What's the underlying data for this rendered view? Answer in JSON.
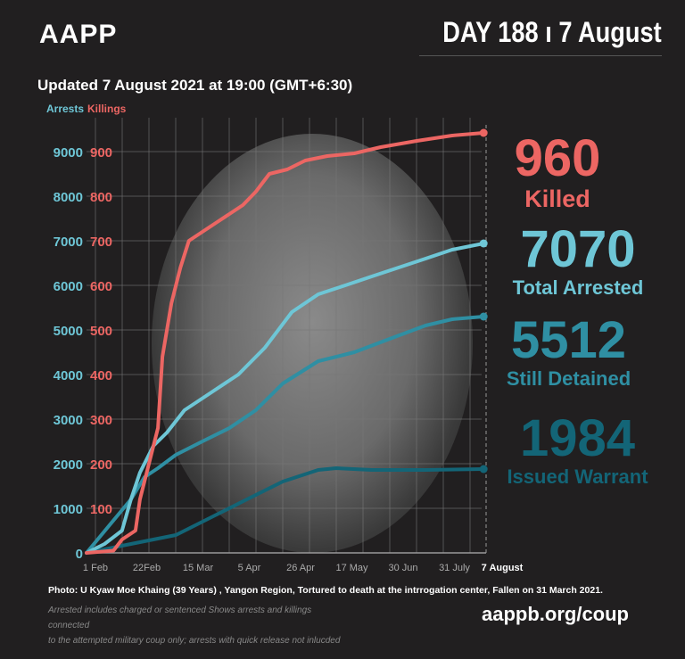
{
  "header": {
    "brand": "AAPP",
    "day": "DAY 188 ı 7 August",
    "updated": "Updated 7 August 2021 at 19:00 (GMT+6:30)"
  },
  "stats": [
    {
      "value": "960",
      "label": "Killed",
      "color": "#ec6663"
    },
    {
      "value": "7070",
      "label": "Total Arrested",
      "color": "#6ec6d6"
    },
    {
      "value": "5512",
      "label": "Still Detained",
      "color": "#2f8fa3"
    },
    {
      "value": "1984",
      "label": "Issued Warrant",
      "color": "#136577"
    }
  ],
  "footer": {
    "photo": "Photo:  U Kyaw Moe Khaing (39 Years) , Yangon Region, Tortured to death at the intrrogation center, Fallen on 31 March 2021.",
    "note1": "Arrested includes charged or sentenced Shows arrests and killings connected",
    "note2": "to the attempted military coup only; arrests with quick release not inlucded",
    "url": "aappb.org/coup"
  },
  "chart_data": {
    "type": "line",
    "title": "",
    "legend": [
      "Arrests",
      "Killings"
    ],
    "x_tick_labels": [
      "1 Feb",
      "22Feb",
      "15 Mar",
      "5 Apr",
      "26 Apr",
      "17 May",
      "30 Jun",
      "31 July",
      "7 August"
    ],
    "y_left": {
      "label": "Arrests",
      "ticks": [
        0,
        1000,
        2000,
        3000,
        4000,
        5000,
        6000,
        7000,
        8000,
        9000
      ],
      "range": [
        0,
        9500
      ]
    },
    "y_right": {
      "label": "Killings",
      "ticks": [
        100,
        200,
        300,
        400,
        500,
        600,
        700,
        800,
        900
      ],
      "range": [
        0,
        950
      ]
    },
    "colors": {
      "killings": "#ec6663",
      "arrests": "#6ec6d6",
      "detained": "#2f8fa3",
      "warrant": "#136577"
    },
    "series": [
      {
        "name": "Killings",
        "axis": "right",
        "key": "killings",
        "points": [
          [
            0,
            0
          ],
          [
            0.54,
            5
          ],
          [
            0.71,
            30
          ],
          [
            0.98,
            50
          ],
          [
            1.07,
            120
          ],
          [
            1.25,
            200
          ],
          [
            1.43,
            280
          ],
          [
            1.52,
            440
          ],
          [
            1.7,
            560
          ],
          [
            1.88,
            640
          ],
          [
            2.05,
            700
          ],
          [
            2.32,
            720
          ],
          [
            2.59,
            740
          ],
          [
            2.86,
            760
          ],
          [
            3.13,
            780
          ],
          [
            3.39,
            810
          ],
          [
            3.66,
            850
          ],
          [
            4.02,
            860
          ],
          [
            4.38,
            880
          ],
          [
            4.82,
            890
          ],
          [
            5.36,
            896
          ],
          [
            5.89,
            910
          ],
          [
            6.61,
            924
          ],
          [
            7.32,
            936
          ],
          [
            7.95,
            942
          ]
        ]
      },
      {
        "name": "Total Arrested",
        "axis": "left",
        "key": "arrests",
        "points": [
          [
            0,
            0
          ],
          [
            0.36,
            200
          ],
          [
            0.71,
            500
          ],
          [
            0.89,
            1200
          ],
          [
            1.07,
            1800
          ],
          [
            1.34,
            2400
          ],
          [
            1.61,
            2700
          ],
          [
            1.96,
            3200
          ],
          [
            2.5,
            3600
          ],
          [
            3.04,
            4000
          ],
          [
            3.57,
            4600
          ],
          [
            4.11,
            5400
          ],
          [
            4.64,
            5800
          ],
          [
            5.18,
            6000
          ],
          [
            5.71,
            6200
          ],
          [
            6.25,
            6400
          ],
          [
            6.79,
            6600
          ],
          [
            7.32,
            6800
          ],
          [
            7.95,
            6940
          ]
        ]
      },
      {
        "name": "Still Detained",
        "axis": "left",
        "key": "detained",
        "points": [
          [
            0,
            0
          ],
          [
            0.89,
            1200
          ],
          [
            1.16,
            1700
          ],
          [
            1.43,
            1900
          ],
          [
            1.79,
            2200
          ],
          [
            2.32,
            2500
          ],
          [
            2.86,
            2800
          ],
          [
            3.39,
            3200
          ],
          [
            3.93,
            3800
          ],
          [
            4.64,
            4300
          ],
          [
            5.36,
            4500
          ],
          [
            6.07,
            4800
          ],
          [
            6.79,
            5100
          ],
          [
            7.32,
            5240
          ],
          [
            7.95,
            5300
          ]
        ]
      },
      {
        "name": "Issued Warrant",
        "axis": "left",
        "key": "warrant",
        "points": [
          [
            0,
            0
          ],
          [
            0.89,
            200
          ],
          [
            1.79,
            400
          ],
          [
            2.5,
            800
          ],
          [
            3.21,
            1200
          ],
          [
            3.93,
            1600
          ],
          [
            4.64,
            1860
          ],
          [
            5.0,
            1900
          ],
          [
            5.71,
            1860
          ],
          [
            6.79,
            1860
          ],
          [
            7.95,
            1880
          ]
        ]
      }
    ]
  }
}
